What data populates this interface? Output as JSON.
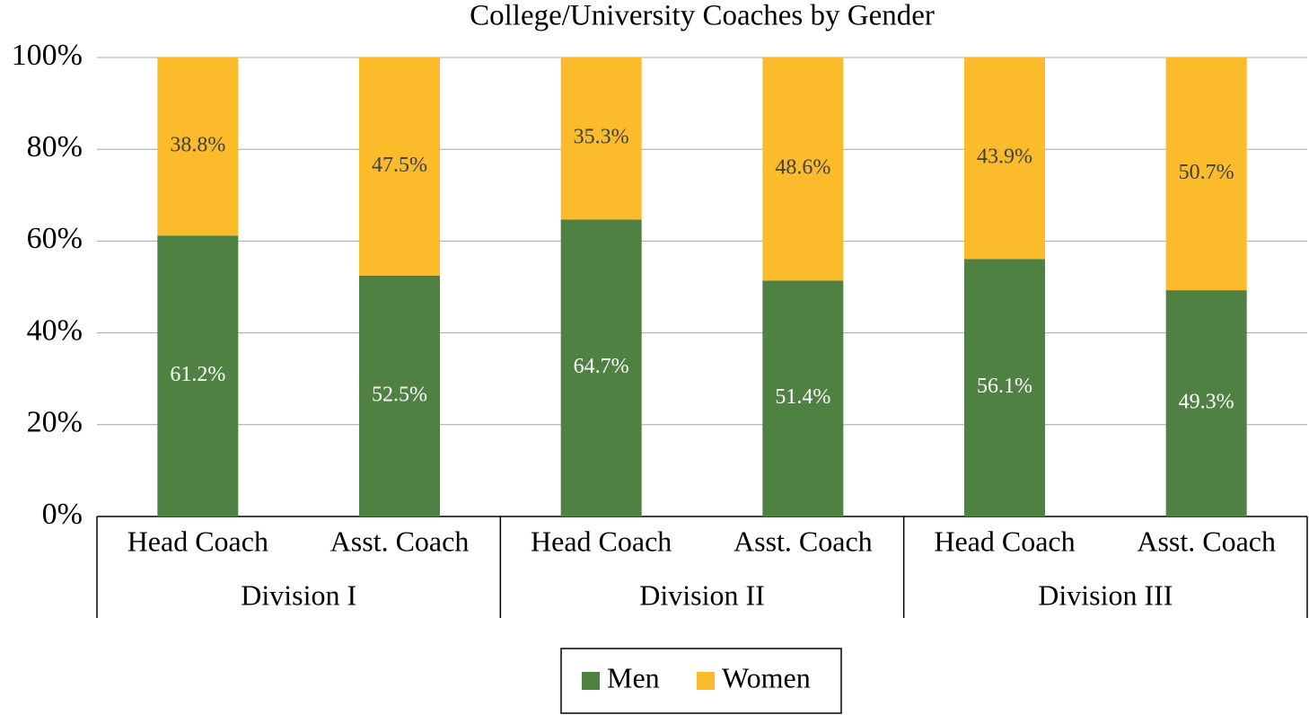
{
  "chart_data": {
    "type": "stacked_bar",
    "title": "College/University Coaches by Gender",
    "categories": [
      "Head Coach",
      "Asst. Coach",
      "Head Coach",
      "Asst. Coach",
      "Head Coach",
      "Asst. Coach"
    ],
    "groups": [
      "Division I",
      "Division II",
      "Division III"
    ],
    "series": [
      {
        "name": "Men",
        "color": "#4f8242",
        "values": [
          61.2,
          52.5,
          64.7,
          51.4,
          56.1,
          49.3
        ],
        "value_labels": [
          "61.2%",
          "52.5%",
          "64.7%",
          "51.4%",
          "56.1%",
          "49.3%"
        ]
      },
      {
        "name": "Women",
        "color": "#fbbb2b",
        "values": [
          38.8,
          47.5,
          35.3,
          48.6,
          43.9,
          50.7
        ],
        "value_labels": [
          "38.8%",
          "47.5%",
          "35.3%",
          "48.6%",
          "43.9%",
          "50.7%"
        ]
      }
    ],
    "ylim": [
      0,
      100
    ],
    "yticks": [
      {
        "value": 0,
        "label": "0%"
      },
      {
        "value": 20,
        "label": "20%"
      },
      {
        "value": 40,
        "label": "40%"
      },
      {
        "value": 60,
        "label": "60%"
      },
      {
        "value": 80,
        "label": "80%"
      },
      {
        "value": 100,
        "label": "100%"
      }
    ],
    "grid": true,
    "legend": "bottom"
  }
}
